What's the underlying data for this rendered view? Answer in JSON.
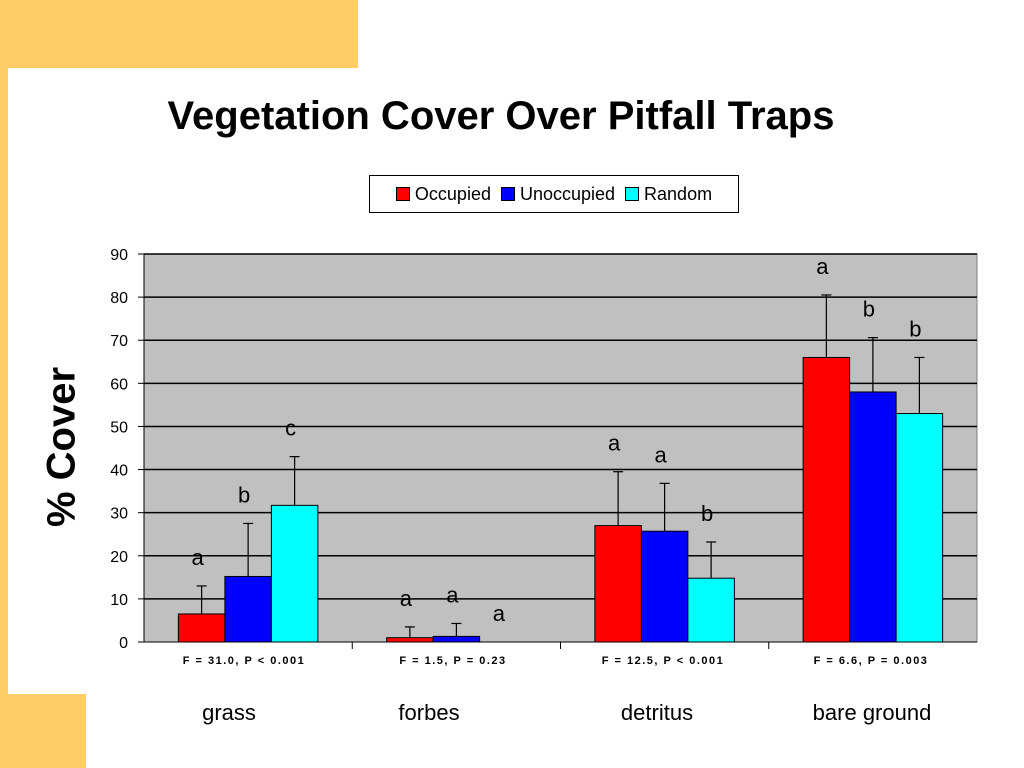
{
  "slide": {
    "title": "Vegetation Cover Over Pitfall Traps",
    "accent_color": "#ffcc66"
  },
  "chart_data": {
    "type": "bar",
    "title": "Vegetation Cover Over Pitfall Traps",
    "ylabel": "% Cover",
    "xlabel": "",
    "ylim": [
      0,
      90
    ],
    "yticks": [
      0,
      10,
      20,
      30,
      40,
      50,
      60,
      70,
      80,
      90
    ],
    "grid": true,
    "plot_background": "#c0c0c0",
    "legend_position": "top",
    "categories": [
      "grass",
      "forbes",
      "detritus",
      "bare ground"
    ],
    "stat_labels": [
      "F = 31.0, P < 0.001",
      "F = 1.5, P = 0.23",
      "F = 12.5, P < 0.001",
      "F = 6.6, P = 0.003"
    ],
    "series": [
      {
        "name": "Occupied",
        "color": "#ff0000",
        "values": [
          6.5,
          1,
          27,
          66
        ],
        "error_upper": [
          13,
          3.5,
          39.5,
          80.5
        ],
        "letters": [
          "a",
          "a",
          "a",
          "a"
        ]
      },
      {
        "name": "Unoccupied",
        "color": "#0000ff",
        "values": [
          15.2,
          1.3,
          25.7,
          58
        ],
        "error_upper": [
          27.5,
          4.3,
          36.8,
          70.6
        ],
        "letters": [
          "b",
          "a",
          "a",
          "b"
        ]
      },
      {
        "name": "Random",
        "color": "#00ffff",
        "values": [
          31.7,
          0,
          14.8,
          53
        ],
        "error_upper": [
          43,
          null,
          23.2,
          66
        ],
        "letters": [
          "c",
          "a",
          "b",
          "b"
        ]
      }
    ]
  }
}
